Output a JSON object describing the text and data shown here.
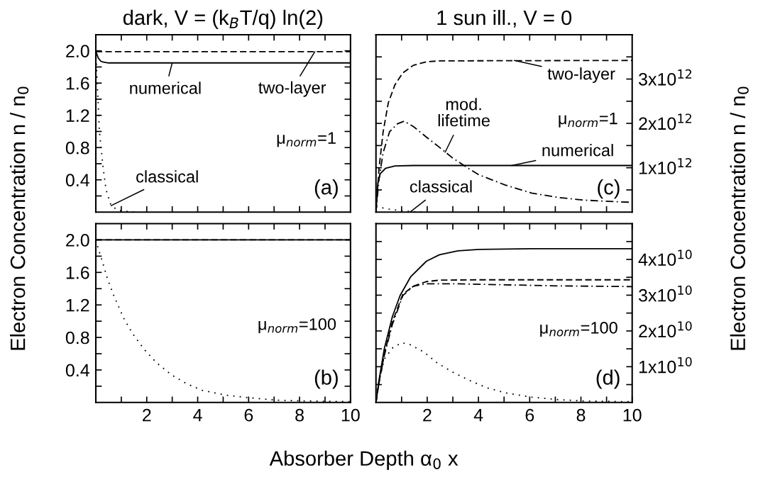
{
  "chart_data": [
    {
      "type": "line",
      "title": "dark, V = (k$_{B}$T/q) ln(2)",
      "ylabel": "Electron Concentration n / n$_{0}$",
      "xlim": [
        0,
        10
      ],
      "ylim": [
        0,
        2.2
      ],
      "xticks": [
        1,
        2,
        3,
        4,
        5,
        6,
        7,
        8,
        9
      ],
      "yticks": [
        {
          "value": 0.2,
          "label": null
        },
        0.4,
        {
          "value": 0.6,
          "label": null
        },
        0.8,
        {
          "value": 1.0,
          "label": null
        },
        1.2,
        {
          "value": 1.4,
          "label": null
        },
        1.6,
        {
          "value": 1.8,
          "label": null
        },
        {
          "value": 2.0,
          "label": "2.0"
        }
      ],
      "tick_labels": "y",
      "series": [
        {
          "color": "#000000",
          "line_style": "solid",
          "x": [
            0,
            0.05,
            0.1,
            0.2,
            0.3,
            0.5,
            0.8,
            1.5,
            10
          ],
          "values": [
            2.0,
            1.95,
            1.91,
            1.87,
            1.86,
            1.85,
            1.85,
            1.85,
            1.85
          ]
        },
        {
          "color": "#000000",
          "line_style": "dashed",
          "x": [
            0,
            10
          ],
          "values": [
            1.99,
            1.99
          ]
        },
        {
          "color": "#000000",
          "line_style": "dotted",
          "x": [
            0,
            0.06,
            0.14,
            0.28,
            0.4,
            0.6,
            0.88,
            1.5
          ],
          "values": [
            2.0,
            1.57,
            1.01,
            0.57,
            0.28,
            0.08,
            0.02,
            0.0
          ]
        }
      ],
      "annotations": [
        {
          "text": "numerical",
          "x": 3.0,
          "y": 1.85
        },
        {
          "text": "two-layer",
          "x": 8.6,
          "y": 1.99
        },
        {
          "text": "classical",
          "x": 0.6,
          "y": 0.08
        },
        "μ$_{norm}$=1",
        "(a)"
      ]
    },
    {
      "type": "line",
      "xlabel": "Absorber Depth α$_{0}$ x",
      "xlim": [
        0,
        10
      ],
      "ylim": [
        0,
        2.2
      ],
      "xticks": [
        {
          "value": 1,
          "label": null
        },
        2,
        {
          "value": 3,
          "label": null
        },
        4,
        {
          "value": 5,
          "label": null
        },
        6,
        {
          "value": 7,
          "label": null
        },
        8,
        {
          "value": 9,
          "label": null
        },
        10
      ],
      "yticks": [
        {
          "value": 0.2,
          "label": null
        },
        0.4,
        {
          "value": 0.6,
          "label": null
        },
        0.8,
        {
          "value": 1.0,
          "label": null
        },
        1.2,
        {
          "value": 1.4,
          "label": null
        },
        1.6,
        {
          "value": 1.8,
          "label": null
        },
        {
          "value": 2.0,
          "label": "2.0"
        }
      ],
      "series": [
        {
          "color": "#000000",
          "line_style": "solid",
          "x": [
            0,
            10
          ],
          "values": [
            2.0,
            2.0
          ]
        },
        {
          "color": "#000000",
          "line_style": "dashed",
          "x": [
            0,
            10
          ],
          "values": [
            2.0,
            2.0
          ]
        },
        {
          "color": "#000000",
          "line_style": "dotted",
          "x": [
            0,
            0.09,
            0.28,
            0.46,
            0.7,
            1.09,
            1.44,
            1.88,
            2.38,
            2.97,
            3.57,
            4.17,
            5.1,
            5.98,
            7.0,
            8.0,
            10
          ],
          "values": [
            2.0,
            1.9,
            1.71,
            1.52,
            1.32,
            1.04,
            0.85,
            0.66,
            0.49,
            0.34,
            0.23,
            0.15,
            0.09,
            0.06,
            0.03,
            0.02,
            0.01
          ]
        }
      ],
      "annotations": [
        "μ$_{norm}$=100",
        "(b)"
      ]
    },
    {
      "type": "line",
      "title": "1 sun ill., V = 0",
      "ylabel": "Electron Concentration n / n$_{0}$",
      "xlim": [
        0,
        10
      ],
      "ylim": [
        0,
        4000000000000.0
      ],
      "xticks": [
        1,
        2,
        3,
        4,
        5,
        6,
        7,
        8,
        9
      ],
      "yticks": [
        {
          "value": 500000000000.0,
          "label": null
        },
        {
          "value": 1000000000000.0,
          "label": "1x10$^{12}$"
        },
        {
          "value": 1500000000000.0,
          "label": null
        },
        {
          "value": 2000000000000.0,
          "label": "2x10$^{12}$"
        },
        {
          "value": 2500000000000.0,
          "label": null
        },
        {
          "value": 3000000000000.0,
          "label": "3x10$^{12}$"
        },
        {
          "value": 3500000000000.0,
          "label": null
        }
      ],
      "tick_labels": "y",
      "series": [
        {
          "color": "#000000",
          "line_style": "solid",
          "x": [
            0,
            0.07,
            0.17,
            0.38,
            0.74,
            1.46,
            10
          ],
          "values": [
            0,
            640000000000.0,
            870000000000.0,
            990000000000.0,
            1040000000000.0,
            1050000000000.0,
            1050000000000.0
          ]
        },
        {
          "color": "#000000",
          "line_style": "dashed",
          "x": [
            0,
            0.12,
            0.28,
            0.48,
            0.74,
            1.05,
            1.46,
            1.97,
            2.48,
            10
          ],
          "values": [
            0,
            990000000000.0,
            1810000000000.0,
            2460000000000.0,
            2870000000000.0,
            3140000000000.0,
            3310000000000.0,
            3390000000000.0,
            3410000000000.0,
            3420000000000.0
          ]
        },
        {
          "color": "#000000",
          "line_style": "dashdot",
          "x": [
            0,
            0.12,
            0.28,
            0.53,
            0.84,
            1.1,
            1.46,
            1.97,
            2.48,
            2.99,
            3.51,
            4.02,
            5.05,
            6.07,
            7.1,
            8.12,
            9.15,
            10
          ],
          "values": [
            0,
            750000000000.0,
            1340000000000.0,
            1810000000000.0,
            1990000000000.0,
            2050000000000.0,
            1930000000000.0,
            1690000000000.0,
            1460000000000.0,
            1220000000000.0,
            1020000000000.0,
            840000000000.0,
            610000000000.0,
            430000000000.0,
            330000000000.0,
            270000000000.0,
            240000000000.0,
            220000000000.0
          ]
        },
        {
          "color": "#000000",
          "line_style": "dotted",
          "x": [
            0,
            0.5,
            1.0,
            1.5,
            2.0
          ],
          "values": [
            120000000000.0,
            70000000000.0,
            30000000000.0,
            10000000000.0,
            0
          ]
        }
      ],
      "annotations": [
        {
          "text": "two-layer",
          "x": 5.4,
          "y": 3420000000000.0
        },
        {
          "text": "mod.\nlifetime",
          "x": 2.7,
          "y": 1350000000000.0
        },
        {
          "text": "numerical",
          "x": 5.3,
          "y": 1050000000000.0
        },
        {
          "text": "classical",
          "x": 1.35,
          "y": 10000000000.0
        },
        "μ$_{norm}$=1",
        "(c)"
      ]
    },
    {
      "type": "line",
      "xlim": [
        0,
        10
      ],
      "ylim": [
        0,
        50000000000.0
      ],
      "xticks": [
        {
          "value": 1,
          "label": null
        },
        2,
        {
          "value": 3,
          "label": null
        },
        4,
        {
          "value": 5,
          "label": null
        },
        6,
        {
          "value": 7,
          "label": null
        },
        8,
        {
          "value": 9,
          "label": null
        },
        10
      ],
      "yticks": [
        {
          "value": 5000000000.0,
          "label": null
        },
        {
          "value": 10000000000.0,
          "label": "1x10$^{10}$"
        },
        {
          "value": 15000000000.0,
          "label": null
        },
        {
          "value": 20000000000.0,
          "label": "2x10$^{10}$"
        },
        {
          "value": 25000000000.0,
          "label": null
        },
        {
          "value": 30000000000.0,
          "label": "3x10$^{10}$"
        },
        {
          "value": 35000000000.0,
          "label": null
        },
        {
          "value": 40000000000.0,
          "label": "4x10$^{10}$"
        },
        {
          "value": 45000000000.0,
          "label": null
        }
      ],
      "series": [
        {
          "color": "#000000",
          "line_style": "solid",
          "x": [
            0,
            0.12,
            0.33,
            0.64,
            0.94,
            1.35,
            1.97,
            2.48,
            3.2,
            4.02,
            6.07,
            10
          ],
          "values": [
            0,
            6300000000.0,
            15200000000.0,
            24000000000.0,
            29900000000.0,
            35100000000.0,
            39500000000.0,
            41300000000.0,
            42400000000.0,
            42800000000.0,
            43000000000.0,
            43000000000.0
          ]
        },
        {
          "color": "#000000",
          "line_style": "dashed",
          "x": [
            0,
            0.12,
            0.33,
            0.64,
            1.05,
            1.46,
            1.97,
            2.48,
            4.02,
            10
          ],
          "values": [
            0,
            5600000000.0,
            13700000000.0,
            22500000000.0,
            30300000000.0,
            32500000000.0,
            33800000000.0,
            34200000000.0,
            34300000000.0,
            34300000000.0
          ]
        },
        {
          "color": "#000000",
          "line_style": "dashdot",
          "x": [
            0,
            0.12,
            0.33,
            0.64,
            1.05,
            1.46,
            1.97,
            2.99,
            5.05,
            7.1,
            10
          ],
          "values": [
            0,
            5600000000.0,
            13300000000.0,
            21800000000.0,
            29900000000.0,
            32500000000.0,
            33200000000.0,
            33200000000.0,
            32900000000.0,
            32600000000.0,
            32400000000.0
          ]
        },
        {
          "color": "#000000",
          "line_style": "dotted",
          "x": [
            0,
            0.12,
            0.33,
            0.64,
            0.99,
            1.3,
            1.87,
            2.38,
            2.99,
            3.61,
            4.33,
            5.05,
            6.07,
            7.1,
            8.12,
            9.15,
            10
          ],
          "values": [
            0,
            6300000000.0,
            12200000000.0,
            15200000000.0,
            16700000000.0,
            16300000000.0,
            14100000000.0,
            11100000000.0,
            8500000000.0,
            6300000000.0,
            4100000000.0,
            2700000000.0,
            1500000000.0,
            800000000.0,
            400000000.0,
            300000000.0,
            200000000.0
          ]
        }
      ],
      "annotations": [
        "μ$_{norm}$=100",
        "(d)"
      ]
    }
  ]
}
